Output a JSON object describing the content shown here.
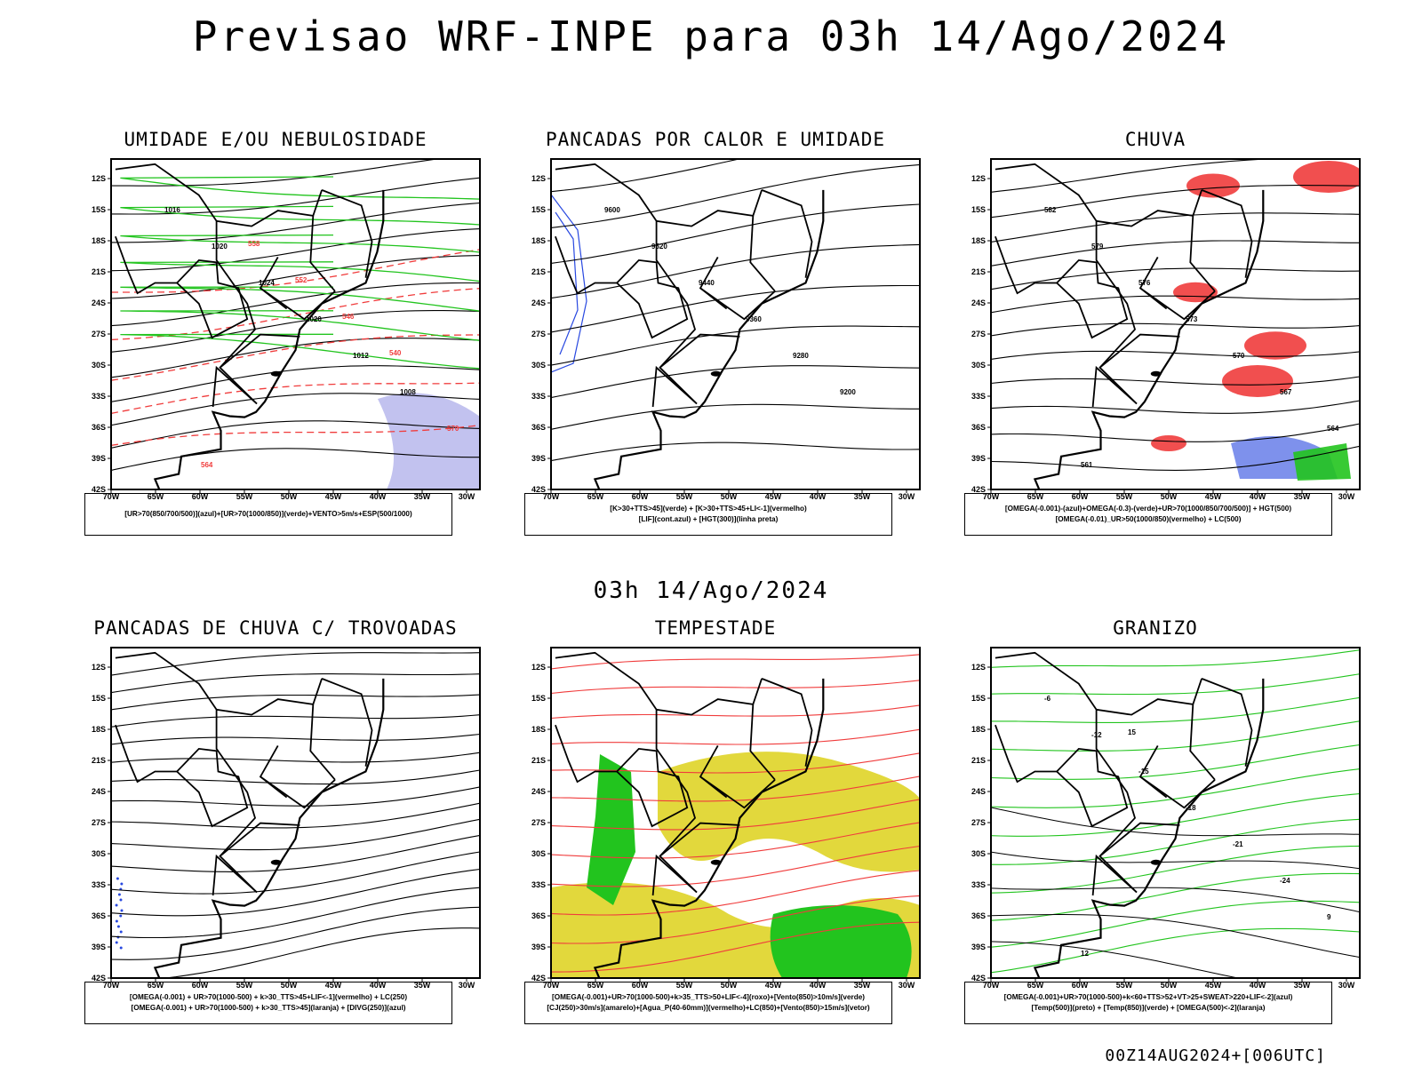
{
  "main_title": "Previsao WRF-INPE  para 03h 14/Ago/2024",
  "mid_title": "03h 14/Ago/2024",
  "footer": "00Z14AUG2024+[006UTC]",
  "lat_labels": [
    "12S",
    "15S",
    "18S",
    "21S",
    "24S",
    "27S",
    "30S",
    "33S",
    "36S",
    "39S",
    "42S"
  ],
  "lon_labels": [
    "70W",
    "65W",
    "60W",
    "55W",
    "50W",
    "45W",
    "40W",
    "35W",
    "30W"
  ],
  "colors": {
    "green": "#22c41e",
    "red": "#f03c3c",
    "blue": "#2848e0",
    "yellow": "#e2d83c",
    "purple": "#a8a8e8"
  },
  "panels": [
    {
      "title": "UMIDADE E/OU NEBULOSIDADE",
      "legend": [
        "[UR>70(850/700/500)](azul)+[UR>70(1000/850)](verde)+VENTO>5m/s+ESP(500/1000)"
      ],
      "labels": [
        "1016",
        "1020",
        "1024",
        "1020",
        "1012",
        "1008",
        "570",
        "564",
        "558",
        "552",
        "546",
        "540"
      ]
    },
    {
      "title": "PANCADAS POR CALOR E UMIDADE",
      "legend": [
        "[K>30+TTS>45](verde) + [K>30+TTS>45+LI<-1](vermelho)",
        "[LIF](cont.azul) + [HGT(300)](linha preta)"
      ],
      "labels": [
        "9600",
        "9520",
        "9440",
        "9360",
        "9280",
        "9200"
      ]
    },
    {
      "title": "CHUVA",
      "legend": [
        "[OMEGA(-0.001)-(azul)+OMEGA(-0.3)-(verde)+UR>70(1000/850/700/500)] + HGT(500)",
        "[OMEGA(-0.01)_UR>50(1000/850)(vermelho) + LC(500)"
      ],
      "labels": [
        "582",
        "579",
        "576",
        "573",
        "570",
        "567",
        "564",
        "561"
      ]
    },
    {
      "title": "PANCADAS DE CHUVA C/ TROVOADAS",
      "legend": [
        "[OMEGA(-0.001) + UR>70(1000-500) + k>30_TTS>45+LIF<-1](vermelho) + LC(250)",
        "[OMEGA(-0.001) + UR>70(1000-500) + k>30_TTS>45](laranja) + [DIVG(250)](azul)"
      ],
      "labels": []
    },
    {
      "title": "TEMPESTADE",
      "legend": [
        "[OMEGA(-0.001)+UR>70(1000-500)+k>35_TTS>50+LIF<-4](roxo)+[Vento(850)>10m/s](verde)",
        "[CJ(250)>30m/s](amarelo)+[Agua_P(40-60mm)](vermelho)+LC(850)+[Vento(850)>15m/s](vetor)"
      ],
      "labels": []
    },
    {
      "title": "GRANIZO",
      "legend": [
        "[OMEGA(-0.001)+UR>70(1000-500)+k<60+TTS>52+VT>25+SWEAT>220+LIF<-2](azul)",
        "[Temp(500)](preto) + [Temp(850)](verde) + [OMEGA(500)<-2](laranja)"
      ],
      "labels": [
        "-6",
        "-12",
        "-15",
        "-18",
        "-21",
        "-24",
        "9",
        "12",
        "15"
      ]
    }
  ]
}
